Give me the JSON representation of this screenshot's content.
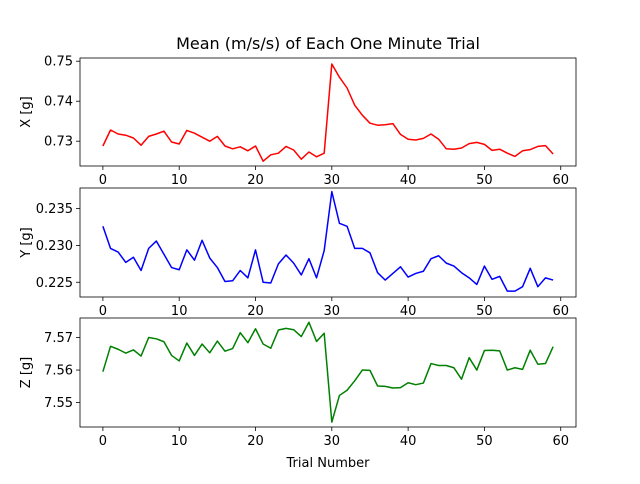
{
  "chart_data": {
    "type": "line",
    "title": "Mean (m/s/s) of Each One Minute Trial",
    "xlabel": "Trial Number",
    "grid": false,
    "x": [
      0,
      1,
      2,
      3,
      4,
      5,
      6,
      7,
      8,
      9,
      10,
      11,
      12,
      13,
      14,
      15,
      16,
      17,
      18,
      19,
      20,
      21,
      22,
      23,
      24,
      25,
      26,
      27,
      28,
      29,
      30,
      31,
      32,
      33,
      34,
      35,
      36,
      37,
      38,
      39,
      40,
      41,
      42,
      43,
      44,
      45,
      46,
      47,
      48,
      49,
      50,
      51,
      52,
      53,
      54,
      55,
      56,
      57,
      58,
      59
    ],
    "xlim": [
      -3,
      62
    ],
    "xticks": [
      0,
      10,
      20,
      30,
      40,
      50,
      60
    ],
    "subplots": [
      {
        "name": "x",
        "ylabel": "X [g]",
        "color": "#ff0000",
        "ylim": [
          0.7238,
          0.7508
        ],
        "yticks": [
          0.73,
          0.74,
          0.75
        ],
        "tick_labels": [
          "0.73",
          "0.74",
          "0.75"
        ],
        "values": [
          0.7288,
          0.7328,
          0.7318,
          0.7315,
          0.7308,
          0.729,
          0.7312,
          0.7318,
          0.7325,
          0.7298,
          0.7293,
          0.7327,
          0.732,
          0.731,
          0.73,
          0.7312,
          0.7288,
          0.7281,
          0.7286,
          0.7276,
          0.7288,
          0.725,
          0.7266,
          0.727,
          0.7287,
          0.7278,
          0.7255,
          0.7273,
          0.7261,
          0.727,
          0.7493,
          0.746,
          0.7433,
          0.739,
          0.7365,
          0.7345,
          0.734,
          0.7341,
          0.7344,
          0.7317,
          0.7305,
          0.7303,
          0.7307,
          0.7318,
          0.7305,
          0.7281,
          0.728,
          0.7283,
          0.7294,
          0.7297,
          0.7292,
          0.7277,
          0.728,
          0.727,
          0.7262,
          0.7276,
          0.7279,
          0.7287,
          0.7289,
          0.7268
        ]
      },
      {
        "name": "y",
        "ylabel": "Y [g]",
        "color": "#0000ff",
        "ylim": [
          0.223,
          0.2378
        ],
        "yticks": [
          0.225,
          0.23,
          0.235
        ],
        "tick_labels": [
          "0.225",
          "0.230",
          "0.235"
        ],
        "values": [
          0.2326,
          0.2296,
          0.2291,
          0.2277,
          0.2284,
          0.2266,
          0.2296,
          0.2306,
          0.2288,
          0.227,
          0.2267,
          0.2294,
          0.228,
          0.2307,
          0.2283,
          0.227,
          0.2251,
          0.2252,
          0.2266,
          0.2256,
          0.2294,
          0.225,
          0.2249,
          0.2275,
          0.2287,
          0.2276,
          0.226,
          0.2282,
          0.2256,
          0.2293,
          0.2373,
          0.233,
          0.2326,
          0.2296,
          0.2296,
          0.229,
          0.2263,
          0.2253,
          0.2262,
          0.2271,
          0.2257,
          0.2262,
          0.2265,
          0.2282,
          0.2286,
          0.2276,
          0.2272,
          0.2263,
          0.2256,
          0.2247,
          0.2272,
          0.2254,
          0.2258,
          0.2238,
          0.2238,
          0.2244,
          0.2269,
          0.2244,
          0.2256,
          0.2253
        ]
      },
      {
        "name": "z",
        "ylabel": "Z [g]",
        "color": "#008000",
        "ylim": [
          7.5425,
          7.576
        ],
        "yticks": [
          7.55,
          7.56,
          7.57
        ],
        "tick_labels": [
          "7.55",
          "7.56",
          "7.57"
        ],
        "values": [
          7.5595,
          7.5673,
          7.5664,
          7.5652,
          7.5662,
          7.5643,
          7.57,
          7.5696,
          7.5687,
          7.5645,
          7.5628,
          7.5683,
          7.5645,
          7.568,
          7.5653,
          7.5689,
          7.5658,
          7.5666,
          7.5715,
          7.5684,
          7.5727,
          7.568,
          7.5667,
          7.5723,
          7.5728,
          7.5724,
          7.5703,
          7.5747,
          7.5688,
          7.5713,
          7.544,
          7.5522,
          7.5538,
          7.5567,
          7.56,
          7.5599,
          7.5551,
          7.555,
          7.5545,
          7.5546,
          7.5561,
          7.5555,
          7.556,
          7.562,
          7.5614,
          7.5614,
          7.5607,
          7.5572,
          7.5638,
          7.56,
          7.566,
          7.5661,
          7.5659,
          7.56,
          7.5607,
          7.5602,
          7.5661,
          7.5618,
          7.562,
          7.5672
        ]
      }
    ]
  }
}
